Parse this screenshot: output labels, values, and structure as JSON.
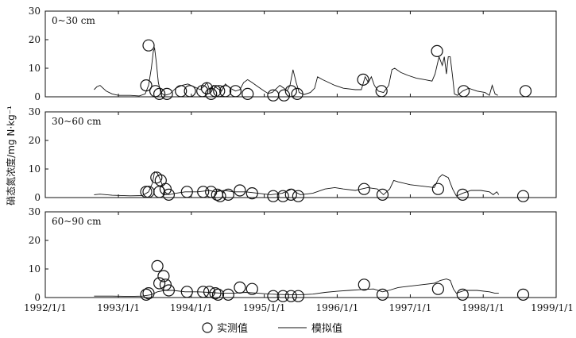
{
  "chart_data": {
    "type": "line",
    "ylabel": "硝态氮浓度/mg N·kg⁻¹",
    "x_ticks": [
      "1992/1/1",
      "1993/1/1",
      "1994/1/1",
      "1995/1/1",
      "1996/1/1",
      "1997/1/1",
      "1998/1/1",
      "1999/1/1"
    ],
    "xlim": [
      "1992/1/1",
      "1999/1/1"
    ],
    "ylim": [
      0,
      30
    ],
    "y_ticks": [
      "0",
      "10",
      "20",
      "30"
    ],
    "legend": {
      "placement": "bottom-center",
      "observed_label": "实测值",
      "simulated_label": "模拟值"
    },
    "panels": [
      {
        "label": "0~30 cm",
        "observed": [
          [
            "1993/5/20",
            4
          ],
          [
            "1993/6/1",
            18
          ],
          [
            "1993/7/5",
            2
          ],
          [
            "1993/7/25",
            1
          ],
          [
            "1993/9/1",
            1
          ],
          [
            "1993/11/10",
            2
          ],
          [
            "1993/12/25",
            2
          ],
          [
            "1994/2/25",
            2
          ],
          [
            "1994/3/20",
            3
          ],
          [
            "1994/4/10",
            1
          ],
          [
            "1994/5/1",
            2
          ],
          [
            "1994/5/20",
            2
          ],
          [
            "1994/6/20",
            2
          ],
          [
            "1994/8/10",
            2
          ],
          [
            "1994/10/10",
            1
          ],
          [
            "1995/2/15",
            0.5
          ],
          [
            "1995/4/10",
            0.5
          ],
          [
            "1995/5/15",
            2
          ],
          [
            "1995/6/15",
            1
          ],
          [
            "1996/5/10",
            6
          ],
          [
            "1996/8/10",
            2
          ],
          [
            "1997/5/15",
            16
          ],
          [
            "1997/9/25",
            2
          ],
          [
            "1998/8/1",
            2
          ]
        ],
        "simulated": [
          [
            "1992/9/1",
            2.5
          ],
          [
            "1992/9/15",
            3.5
          ],
          [
            "1992/10/1",
            4
          ],
          [
            "1992/11/1",
            2
          ],
          [
            "1992/12/1",
            1
          ],
          [
            "1993/1/1",
            0.5
          ],
          [
            "1993/3/1",
            0.5
          ],
          [
            "1993/4/15",
            0.3
          ],
          [
            "1993/5/15",
            1
          ],
          [
            "1993/6/1",
            4
          ],
          [
            "1993/6/15",
            10
          ],
          [
            "1993/6/25",
            16
          ],
          [
            "1993/7/1",
            17
          ],
          [
            "1993/7/10",
            12
          ],
          [
            "1993/7/20",
            5
          ],
          [
            "1993/8/1",
            1.5
          ],
          [
            "1993/8/20",
            0.5
          ],
          [
            "1993/9/15",
            1
          ],
          [
            "1993/10/15",
            3
          ],
          [
            "1993/11/15",
            4
          ],
          [
            "1993/12/15",
            4.5
          ],
          [
            "1994/1/15",
            3.5
          ],
          [
            "1994/2/15",
            2.5
          ],
          [
            "1994/3/10",
            4
          ],
          [
            "1994/3/20",
            5
          ],
          [
            "1994/4/5",
            2
          ],
          [
            "1994/4/20",
            4
          ],
          [
            "1994/5/10",
            3
          ],
          [
            "1994/6/1",
            2
          ],
          [
            "1994/6/20",
            4.5
          ],
          [
            "1994/7/15",
            3
          ],
          [
            "1994/8/10",
            2
          ],
          [
            "1994/9/1",
            2.5
          ],
          [
            "1994/9/20",
            5
          ],
          [
            "1994/10/10",
            6
          ],
          [
            "1994/11/1",
            5
          ],
          [
            "1994/12/1",
            3.5
          ],
          [
            "1995/1/1",
            2
          ],
          [
            "1995/1/20",
            1.2
          ],
          [
            "1995/2/10",
            1.5
          ],
          [
            "1995/3/5",
            3
          ],
          [
            "1995/3/20",
            4
          ],
          [
            "1995/4/10",
            3
          ],
          [
            "1995/4/25",
            2
          ],
          [
            "1995/5/10",
            4
          ],
          [
            "1995/5/25",
            9.5
          ],
          [
            "1995/6/10",
            5
          ],
          [
            "1995/6/25",
            1.5
          ],
          [
            "1995/7/20",
            0.8
          ],
          [
            "1995/8/20",
            1.5
          ],
          [
            "1995/9/10",
            3
          ],
          [
            "1995/9/25",
            7
          ],
          [
            "1995/10/20",
            6
          ],
          [
            "1995/11/20",
            5
          ],
          [
            "1995/12/20",
            4
          ],
          [
            "1996/2/1",
            3
          ],
          [
            "1996/4/1",
            2.5
          ],
          [
            "1996/5/1",
            2.5
          ],
          [
            "1996/5/20",
            7
          ],
          [
            "1996/6/5",
            5
          ],
          [
            "1996/6/20",
            7
          ],
          [
            "1996/7/5",
            4
          ],
          [
            "1996/7/25",
            2
          ],
          [
            "1996/8/20",
            1.5
          ],
          [
            "1996/9/15",
            4
          ],
          [
            "1996/10/1",
            9.5
          ],
          [
            "1996/10/15",
            10
          ],
          [
            "1996/11/15",
            8.5
          ],
          [
            "1996/12/20",
            7.5
          ],
          [
            "1997/2/1",
            6.5
          ],
          [
            "1997/3/15",
            6
          ],
          [
            "1997/4/20",
            5.5
          ],
          [
            "1997/5/5",
            8
          ],
          [
            "1997/5/25",
            14
          ],
          [
            "1997/6/10",
            11
          ],
          [
            "1997/6/20",
            14
          ],
          [
            "1997/7/1",
            8
          ],
          [
            "1997/7/10",
            14
          ],
          [
            "1997/7/20",
            14
          ],
          [
            "1997/8/1",
            7
          ],
          [
            "1997/8/10",
            1
          ],
          [
            "1997/8/25",
            0.5
          ],
          [
            "1997/9/20",
            2
          ],
          [
            "1997/10/20",
            3
          ],
          [
            "1997/12/1",
            2
          ],
          [
            "1998/1/10",
            1.5
          ],
          [
            "1998/2/1",
            0.5
          ],
          [
            "1998/2/15",
            4
          ],
          [
            "1998/3/1",
            1
          ],
          [
            "1998/3/15",
            0.5
          ]
        ]
      },
      {
        "label": "30~60 cm",
        "observed": [
          [
            "1993/5/20",
            2
          ],
          [
            "1993/6/1",
            2
          ],
          [
            "1993/7/10",
            7
          ],
          [
            "1993/8/1",
            6
          ],
          [
            "1993/7/25",
            2
          ],
          [
            "1993/8/25",
            3
          ],
          [
            "1993/9/10",
            1
          ],
          [
            "1993/12/10",
            2
          ],
          [
            "1994/3/1",
            2
          ],
          [
            "1994/4/10",
            2
          ],
          [
            "1994/5/10",
            1
          ],
          [
            "1994/5/25",
            0.5
          ],
          [
            "1994/7/5",
            1
          ],
          [
            "1994/9/1",
            2.5
          ],
          [
            "1994/11/1",
            1.5
          ],
          [
            "1995/2/15",
            0.5
          ],
          [
            "1995/4/5",
            0.5
          ],
          [
            "1995/5/15",
            1
          ],
          [
            "1995/6/20",
            0.5
          ],
          [
            "1996/5/15",
            3
          ],
          [
            "1996/8/15",
            1
          ],
          [
            "1997/5/20",
            3
          ],
          [
            "1997/9/20",
            1
          ],
          [
            "1998/7/20",
            0.5
          ]
        ],
        "simulated": [
          [
            "1992/9/1",
            1
          ],
          [
            "1992/10/1",
            1.2
          ],
          [
            "1992/12/1",
            0.8
          ],
          [
            "1993/3/1",
            0.6
          ],
          [
            "1993/5/1",
            0.7
          ],
          [
            "1993/6/1",
            2
          ],
          [
            "1993/6/20",
            5
          ],
          [
            "1993/7/1",
            9
          ],
          [
            "1993/7/15",
            8.5
          ],
          [
            "1993/8/1",
            6
          ],
          [
            "1993/8/20",
            2
          ],
          [
            "1993/9/10",
            1
          ],
          [
            "1993/10/15",
            1.5
          ],
          [
            "1993/12/1",
            2
          ],
          [
            "1994/2/1",
            2
          ],
          [
            "1994/4/1",
            2.5
          ],
          [
            "1994/5/1",
            2
          ],
          [
            "1994/6/15",
            2.5
          ],
          [
            "1994/8/1",
            2
          ],
          [
            "1994/10/1",
            2
          ],
          [
            "1994/12/1",
            1.5
          ],
          [
            "1995/2/1",
            1
          ],
          [
            "1995/4/1",
            1.5
          ],
          [
            "1995/5/20",
            3
          ],
          [
            "1995/6/5",
            2
          ],
          [
            "1995/7/1",
            1
          ],
          [
            "1995/9/1",
            1.5
          ],
          [
            "1995/11/1",
            3
          ],
          [
            "1995/12/20",
            3.5
          ],
          [
            "1996/2/1",
            3
          ],
          [
            "1996/4/1",
            2.5
          ],
          [
            "1996/6/1",
            3.5
          ],
          [
            "1996/7/20",
            3
          ],
          [
            "1996/8/20",
            1
          ],
          [
            "1996/9/20",
            3
          ],
          [
            "1996/10/10",
            6
          ],
          [
            "1996/11/1",
            5.5
          ],
          [
            "1997/1/1",
            4.5
          ],
          [
            "1997/3/1",
            4
          ],
          [
            "1997/5/1",
            3.5
          ],
          [
            "1997/5/25",
            7
          ],
          [
            "1997/6/10",
            8
          ],
          [
            "1997/7/10",
            7
          ],
          [
            "1997/8/1",
            3
          ],
          [
            "1997/8/20",
            0.5
          ],
          [
            "1997/9/20",
            1.5
          ],
          [
            "1997/11/1",
            2.5
          ],
          [
            "1997/12/20",
            2.5
          ],
          [
            "1998/2/1",
            2
          ],
          [
            "1998/2/20",
            1
          ],
          [
            "1998/3/10",
            2
          ],
          [
            "1998/3/20",
            1
          ]
        ]
      },
      {
        "label": "60~90 cm",
        "observed": [
          [
            "1993/5/20",
            1
          ],
          [
            "1993/6/1",
            1.5
          ],
          [
            "1993/7/15",
            11
          ],
          [
            "1993/7/25",
            5
          ],
          [
            "1993/8/15",
            7.5
          ],
          [
            "1993/8/25",
            4.5
          ],
          [
            "1993/9/10",
            2.5
          ],
          [
            "1993/12/10",
            2
          ],
          [
            "1994/3/1",
            2
          ],
          [
            "1994/4/1",
            2
          ],
          [
            "1994/5/1",
            1.5
          ],
          [
            "1994/5/15",
            1
          ],
          [
            "1994/7/5",
            1
          ],
          [
            "1994/9/1",
            3.5
          ],
          [
            "1994/11/1",
            3
          ],
          [
            "1995/2/15",
            0.5
          ],
          [
            "1995/4/5",
            0.5
          ],
          [
            "1995/5/15",
            0.5
          ],
          [
            "1995/6/20",
            0.5
          ],
          [
            "1996/5/15",
            4.5
          ],
          [
            "1996/8/15",
            1
          ],
          [
            "1997/5/20",
            3
          ],
          [
            "1997/9/20",
            1
          ],
          [
            "1998/7/20",
            1
          ]
        ],
        "simulated": [
          [
            "1992/9/1",
            0.5
          ],
          [
            "1992/12/1",
            0.5
          ],
          [
            "1993/3/1",
            0.4
          ],
          [
            "1993/5/1",
            0.5
          ],
          [
            "1993/6/15",
            1
          ],
          [
            "1993/7/15",
            2
          ],
          [
            "1993/8/20",
            2.5
          ],
          [
            "1993/10/1",
            2.5
          ],
          [
            "1993/12/1",
            2
          ],
          [
            "1994/2/1",
            2
          ],
          [
            "1994/4/1",
            1.8
          ],
          [
            "1994/6/1",
            1.5
          ],
          [
            "1994/8/1",
            1.5
          ],
          [
            "1994/10/1",
            1.8
          ],
          [
            "1994/12/1",
            1.5
          ],
          [
            "1995/2/1",
            1.2
          ],
          [
            "1995/5/1",
            1
          ],
          [
            "1995/7/1",
            1
          ],
          [
            "1995/9/1",
            1.2
          ],
          [
            "1995/11/1",
            1.8
          ],
          [
            "1996/1/1",
            2.2
          ],
          [
            "1996/3/1",
            2.5
          ],
          [
            "1996/5/1",
            2.8
          ],
          [
            "1996/7/1",
            3
          ],
          [
            "1996/8/15",
            2
          ],
          [
            "1996/9/15",
            2.5
          ],
          [
            "1996/11/1",
            3.5
          ],
          [
            "1997/1/1",
            4
          ],
          [
            "1997/3/1",
            4.5
          ],
          [
            "1997/5/1",
            5
          ],
          [
            "1997/6/1",
            6
          ],
          [
            "1997/7/1",
            6.5
          ],
          [
            "1997/7/20",
            6
          ],
          [
            "1997/8/5",
            3
          ],
          [
            "1997/8/20",
            1.5
          ],
          [
            "1997/10/1",
            2.5
          ],
          [
            "1997/12/1",
            2.5
          ],
          [
            "1998/2/1",
            2
          ],
          [
            "1998/3/1",
            1.5
          ],
          [
            "1998/3/20",
            1.5
          ]
        ]
      }
    ]
  }
}
